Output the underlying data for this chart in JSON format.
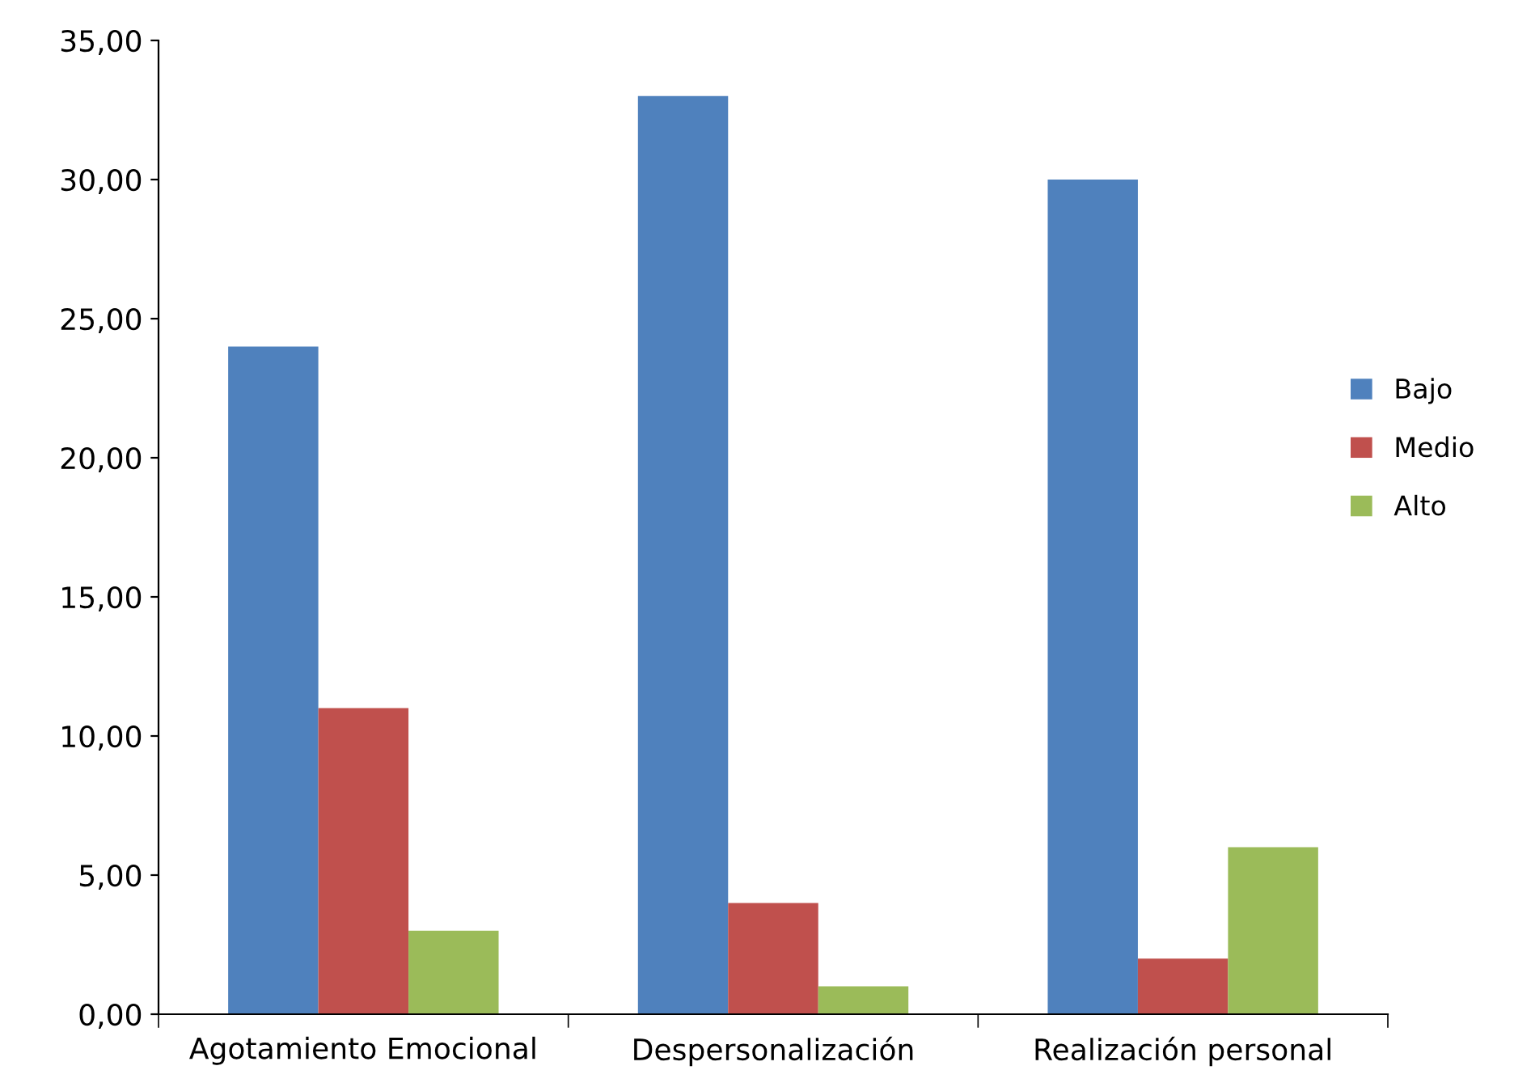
{
  "chart_data": {
    "type": "bar",
    "categories": [
      "Agotamiento Emocional",
      "Despersonalización",
      "Realización personal"
    ],
    "series": [
      {
        "name": "Bajo",
        "color": "#4f81bd",
        "values": [
          24,
          33,
          30
        ]
      },
      {
        "name": "Medio",
        "color": "#c0504d",
        "values": [
          11,
          4,
          2
        ]
      },
      {
        "name": "Alto",
        "color": "#9bbb59",
        "values": [
          3,
          1,
          6
        ]
      }
    ],
    "ylim": [
      0,
      35
    ],
    "yticks": [
      {
        "value": 0,
        "label": "0,00"
      },
      {
        "value": 5,
        "label": "5,00"
      },
      {
        "value": 10,
        "label": "10,00"
      },
      {
        "value": 15,
        "label": "15,00"
      },
      {
        "value": 20,
        "label": "20,00"
      },
      {
        "value": 25,
        "label": "25,00"
      },
      {
        "value": 30,
        "label": "30,00"
      },
      {
        "value": 35,
        "label": "35,00"
      }
    ],
    "grid": false,
    "legend": "right"
  }
}
